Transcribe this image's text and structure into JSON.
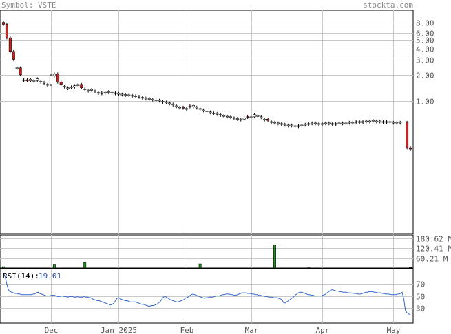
{
  "header": {
    "symbol_label": "Symbol: VSTE",
    "brand": "stockta.com"
  },
  "colors": {
    "frame": "#000000",
    "grid": "#c8c8c8",
    "label": "#555555",
    "up_candle": "#ffffff",
    "down_candle": "#cc2222",
    "volume_up": "#2a8a2a",
    "volume_down": "#cc2222",
    "rsi_line": "#3366cc",
    "rsi_value": "#1a3fa8"
  },
  "chart_data": [
    {
      "type": "candlestick",
      "title": "",
      "y_scale": "log",
      "ylim": [
        0.03,
        11
      ],
      "y_ticks": [
        1,
        2,
        3,
        4,
        5,
        6,
        8
      ],
      "y_tick_labels": [
        "1.00",
        "2.00",
        "3.00",
        "4.00",
        "5.00",
        "6.00",
        "8.00"
      ],
      "x_tick_labels": [
        "Dec",
        "Jan 2025",
        "Feb",
        "Mar",
        "Apr",
        "May"
      ],
      "x_tick_index": [
        14,
        34,
        54,
        73,
        94,
        115
      ],
      "n_bars": 120,
      "gap_after_index": [
        117
      ],
      "close": [
        7.6,
        5.3,
        3.7,
        3.0,
        2.4,
        2.0,
        1.75,
        1.7,
        1.78,
        1.72,
        1.8,
        1.68,
        1.63,
        1.55,
        1.95,
        2.05,
        1.65,
        1.55,
        1.48,
        1.42,
        1.45,
        1.5,
        1.55,
        1.42,
        1.38,
        1.33,
        1.36,
        1.3,
        1.25,
        1.24,
        1.26,
        1.28,
        1.26,
        1.24,
        1.22,
        1.2,
        1.19,
        1.18,
        1.16,
        1.15,
        1.13,
        1.1,
        1.08,
        1.07,
        1.05,
        1.03,
        1.02,
        0.99,
        0.97,
        0.95,
        0.92,
        0.88,
        0.85,
        0.83,
        0.82,
        0.86,
        0.89,
        0.85,
        0.82,
        0.79,
        0.77,
        0.75,
        0.73,
        0.72,
        0.7,
        0.68,
        0.67,
        0.66,
        0.64,
        0.63,
        0.62,
        0.64,
        0.65,
        0.66,
        0.7,
        0.68,
        0.66,
        0.62,
        0.6,
        0.58,
        0.57,
        0.56,
        0.55,
        0.54,
        0.53,
        0.53,
        0.52,
        0.52,
        0.53,
        0.54,
        0.55,
        0.56,
        0.56,
        0.55,
        0.55,
        0.56,
        0.56,
        0.55,
        0.55,
        0.56,
        0.56,
        0.56,
        0.57,
        0.57,
        0.58,
        0.58,
        0.58,
        0.59,
        0.59,
        0.6,
        0.59,
        0.59,
        0.58,
        0.58,
        0.58,
        0.57,
        0.57,
        0.57,
        0.29,
        0.28
      ],
      "down_bars": [
        0,
        1,
        2,
        3,
        5,
        7,
        16,
        17,
        23,
        53,
        55,
        72,
        78,
        118,
        119
      ]
    },
    {
      "type": "bar",
      "title": "",
      "series": [
        {
          "values": [
            8,
            0,
            0,
            0,
            0,
            0,
            0,
            0,
            0,
            0,
            0,
            0,
            0,
            0,
            0,
            23,
            0,
            0,
            0,
            0,
            0,
            0,
            0,
            0,
            36,
            0,
            0,
            0,
            0,
            0,
            0,
            0,
            0,
            0,
            0,
            0,
            0,
            0,
            0,
            0,
            0,
            0,
            0,
            0,
            0,
            0,
            0,
            0,
            0,
            0,
            0,
            0,
            0,
            0,
            0,
            0,
            0,
            0,
            25,
            0,
            0,
            0,
            0,
            0,
            0,
            0,
            0,
            0,
            0,
            0,
            0,
            0,
            0,
            0,
            0,
            0,
            0,
            0,
            0,
            0,
            140,
            0,
            0,
            0,
            0,
            0,
            0,
            0,
            0,
            0,
            2,
            0,
            0,
            0,
            0,
            0,
            0,
            0,
            0,
            0,
            0,
            0,
            0,
            0,
            0,
            0,
            0,
            0,
            0,
            0,
            0,
            0,
            0,
            0,
            0,
            0,
            0,
            0,
            0,
            3
          ]
        }
      ],
      "down_bars": [
        119
      ],
      "ylim": [
        0,
        200
      ],
      "y_ticks": [
        60.21,
        120.41,
        180.62
      ],
      "y_tick_labels": [
        "60.21 M",
        "120.41 M",
        "180.62 M"
      ]
    },
    {
      "type": "line",
      "title": "",
      "label": "RSI(14):",
      "value_label": "19.01",
      "ylim": [
        5,
        95
      ],
      "y_ticks": [
        30,
        50,
        70
      ],
      "y_tick_labels": [
        "30",
        "50",
        "70"
      ],
      "values": [
        88,
        82,
        70,
        60,
        57,
        56,
        55,
        54,
        54,
        53,
        53,
        52,
        52,
        52,
        52,
        52,
        52,
        52,
        53,
        53,
        55,
        56,
        54,
        53,
        52,
        51,
        50,
        50,
        50,
        51,
        51,
        51,
        50,
        49,
        49,
        50,
        50,
        49,
        49,
        48,
        49,
        49,
        49,
        48,
        48,
        49,
        48,
        48,
        48,
        49,
        48,
        48,
        47,
        47,
        45,
        44,
        43,
        42,
        42,
        41,
        40,
        39,
        38,
        37,
        36,
        35,
        36,
        38,
        42,
        46,
        47,
        45,
        44,
        43,
        42,
        42,
        41,
        40,
        40,
        40,
        40,
        39,
        38,
        37,
        36,
        36,
        35,
        34,
        33,
        33,
        34,
        34,
        35,
        36,
        38,
        40,
        44,
        48,
        49,
        48,
        46,
        44,
        43,
        42,
        41,
        40,
        40,
        41,
        42,
        43,
        45,
        47,
        48,
        50,
        52,
        53,
        52,
        51,
        50,
        49,
        48,
        47,
        46,
        47,
        47,
        48,
        48,
        48,
        49,
        50,
        50,
        50,
        51,
        52,
        52,
        53,
        53,
        53,
        52,
        52,
        51,
        51,
        52,
        53,
        54,
        55,
        55,
        55,
        54,
        54,
        54,
        53,
        53,
        52,
        52,
        51,
        51,
        50,
        50,
        49,
        49,
        48,
        48,
        48,
        47,
        47,
        47,
        46,
        45,
        44,
        39,
        38,
        40,
        42,
        44,
        46,
        48,
        51,
        53,
        55,
        56,
        56,
        55,
        54,
        53,
        52,
        52,
        51,
        51,
        50,
        50,
        50,
        50,
        50,
        51,
        52,
        54,
        56,
        58,
        60,
        60,
        59,
        58,
        58,
        57,
        57,
        56,
        56,
        56,
        55,
        55,
        55,
        54,
        54,
        54,
        53,
        53,
        53,
        54,
        55,
        56,
        56,
        57,
        57,
        57,
        56,
        56,
        55,
        55,
        55,
        54,
        54,
        53,
        53,
        53,
        52,
        52,
        52,
        52,
        53,
        53,
        54,
        56,
        45,
        26,
        22,
        20,
        19
      ]
    }
  ]
}
